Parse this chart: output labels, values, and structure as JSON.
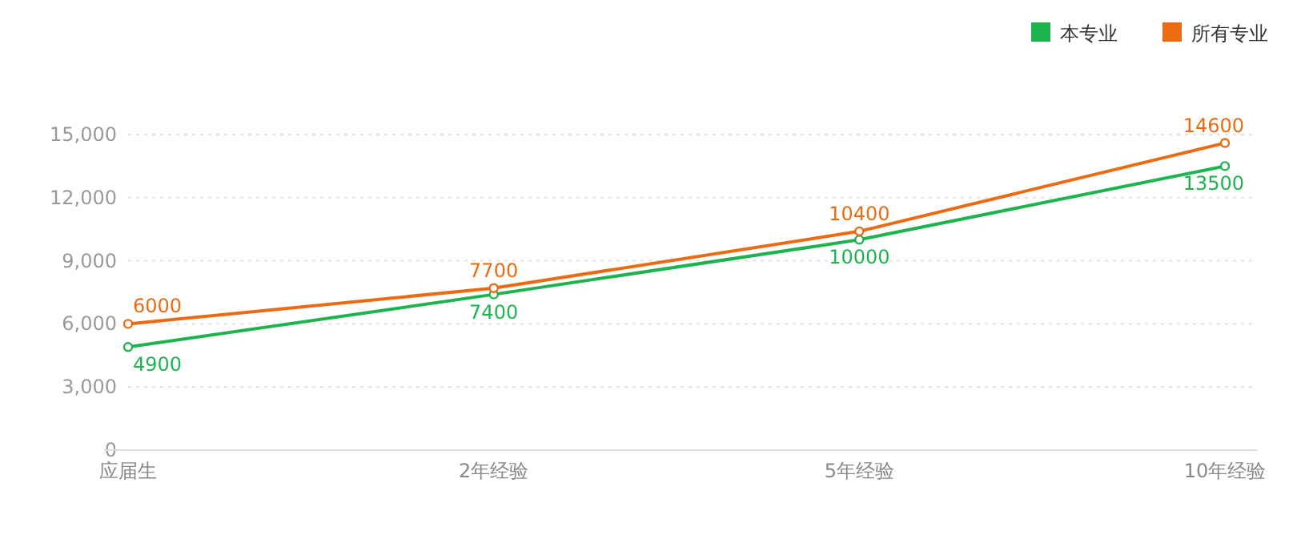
{
  "chart_data": {
    "type": "line",
    "categories": [
      "应届生",
      "2年经验",
      "5年经验",
      "10年经验"
    ],
    "series": [
      {
        "name": "本专业",
        "color": "#1db34f",
        "values": [
          4900,
          7400,
          10000,
          13500
        ]
      },
      {
        "name": "所有专业",
        "color": "#ec6a12",
        "values": [
          6000,
          7700,
          10400,
          14600
        ]
      }
    ],
    "ylim": [
      0,
      15000
    ],
    "yticks": [
      {
        "value": 0,
        "label": "0"
      },
      {
        "value": 3000,
        "label": "3,000"
      },
      {
        "value": 6000,
        "label": "6,000"
      },
      {
        "value": 9000,
        "label": "9,000"
      },
      {
        "value": 12000,
        "label": "12,000"
      },
      {
        "value": 15000,
        "label": "15,000"
      }
    ],
    "grid": "y",
    "legend": "top right",
    "marker": "circle",
    "data_labels": true
  }
}
